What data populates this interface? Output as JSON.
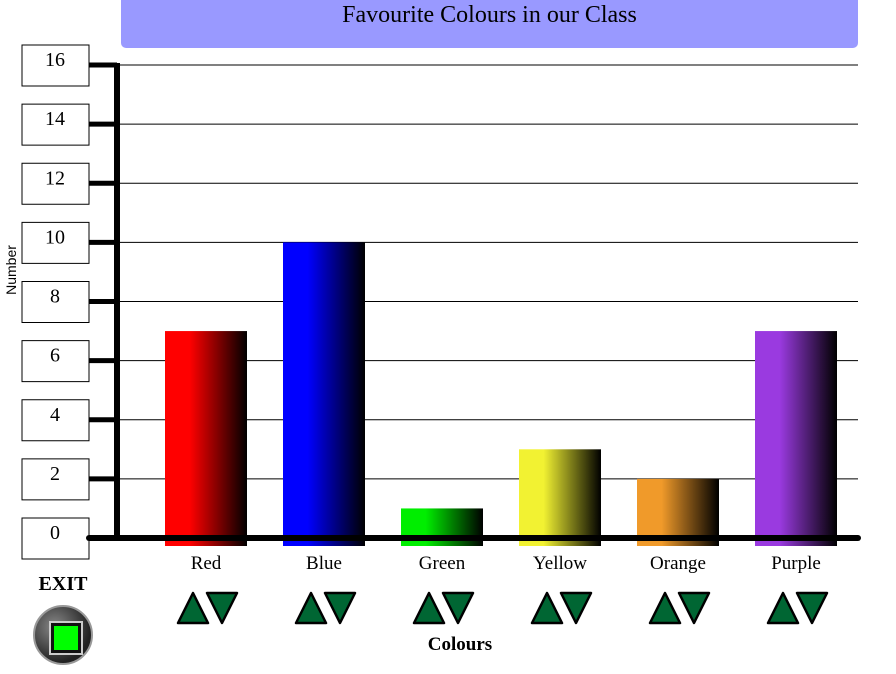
{
  "chart_data": {
    "type": "bar",
    "title": "Favourite Colours in our Class",
    "xlabel": "Colours",
    "ylabel": "Number",
    "ylim": [
      0,
      16
    ],
    "yticks": [
      0,
      2,
      4,
      6,
      8,
      10,
      12,
      14,
      16
    ],
    "grid": true,
    "categories": [
      "Red",
      "Blue",
      "Green",
      "Yellow",
      "Orange",
      "Purple"
    ],
    "values": [
      7,
      10,
      1,
      3,
      2,
      7
    ],
    "colors": [
      "#ff0000",
      "#0000ff",
      "#00ee00",
      "#f2f232",
      "#f09a2a",
      "#9a3ae0"
    ]
  },
  "controls": {
    "exit_label": "EXIT",
    "arrow_color": "#006633",
    "increase_icon": "triangle-up-icon",
    "decrease_icon": "triangle-down-icon"
  }
}
